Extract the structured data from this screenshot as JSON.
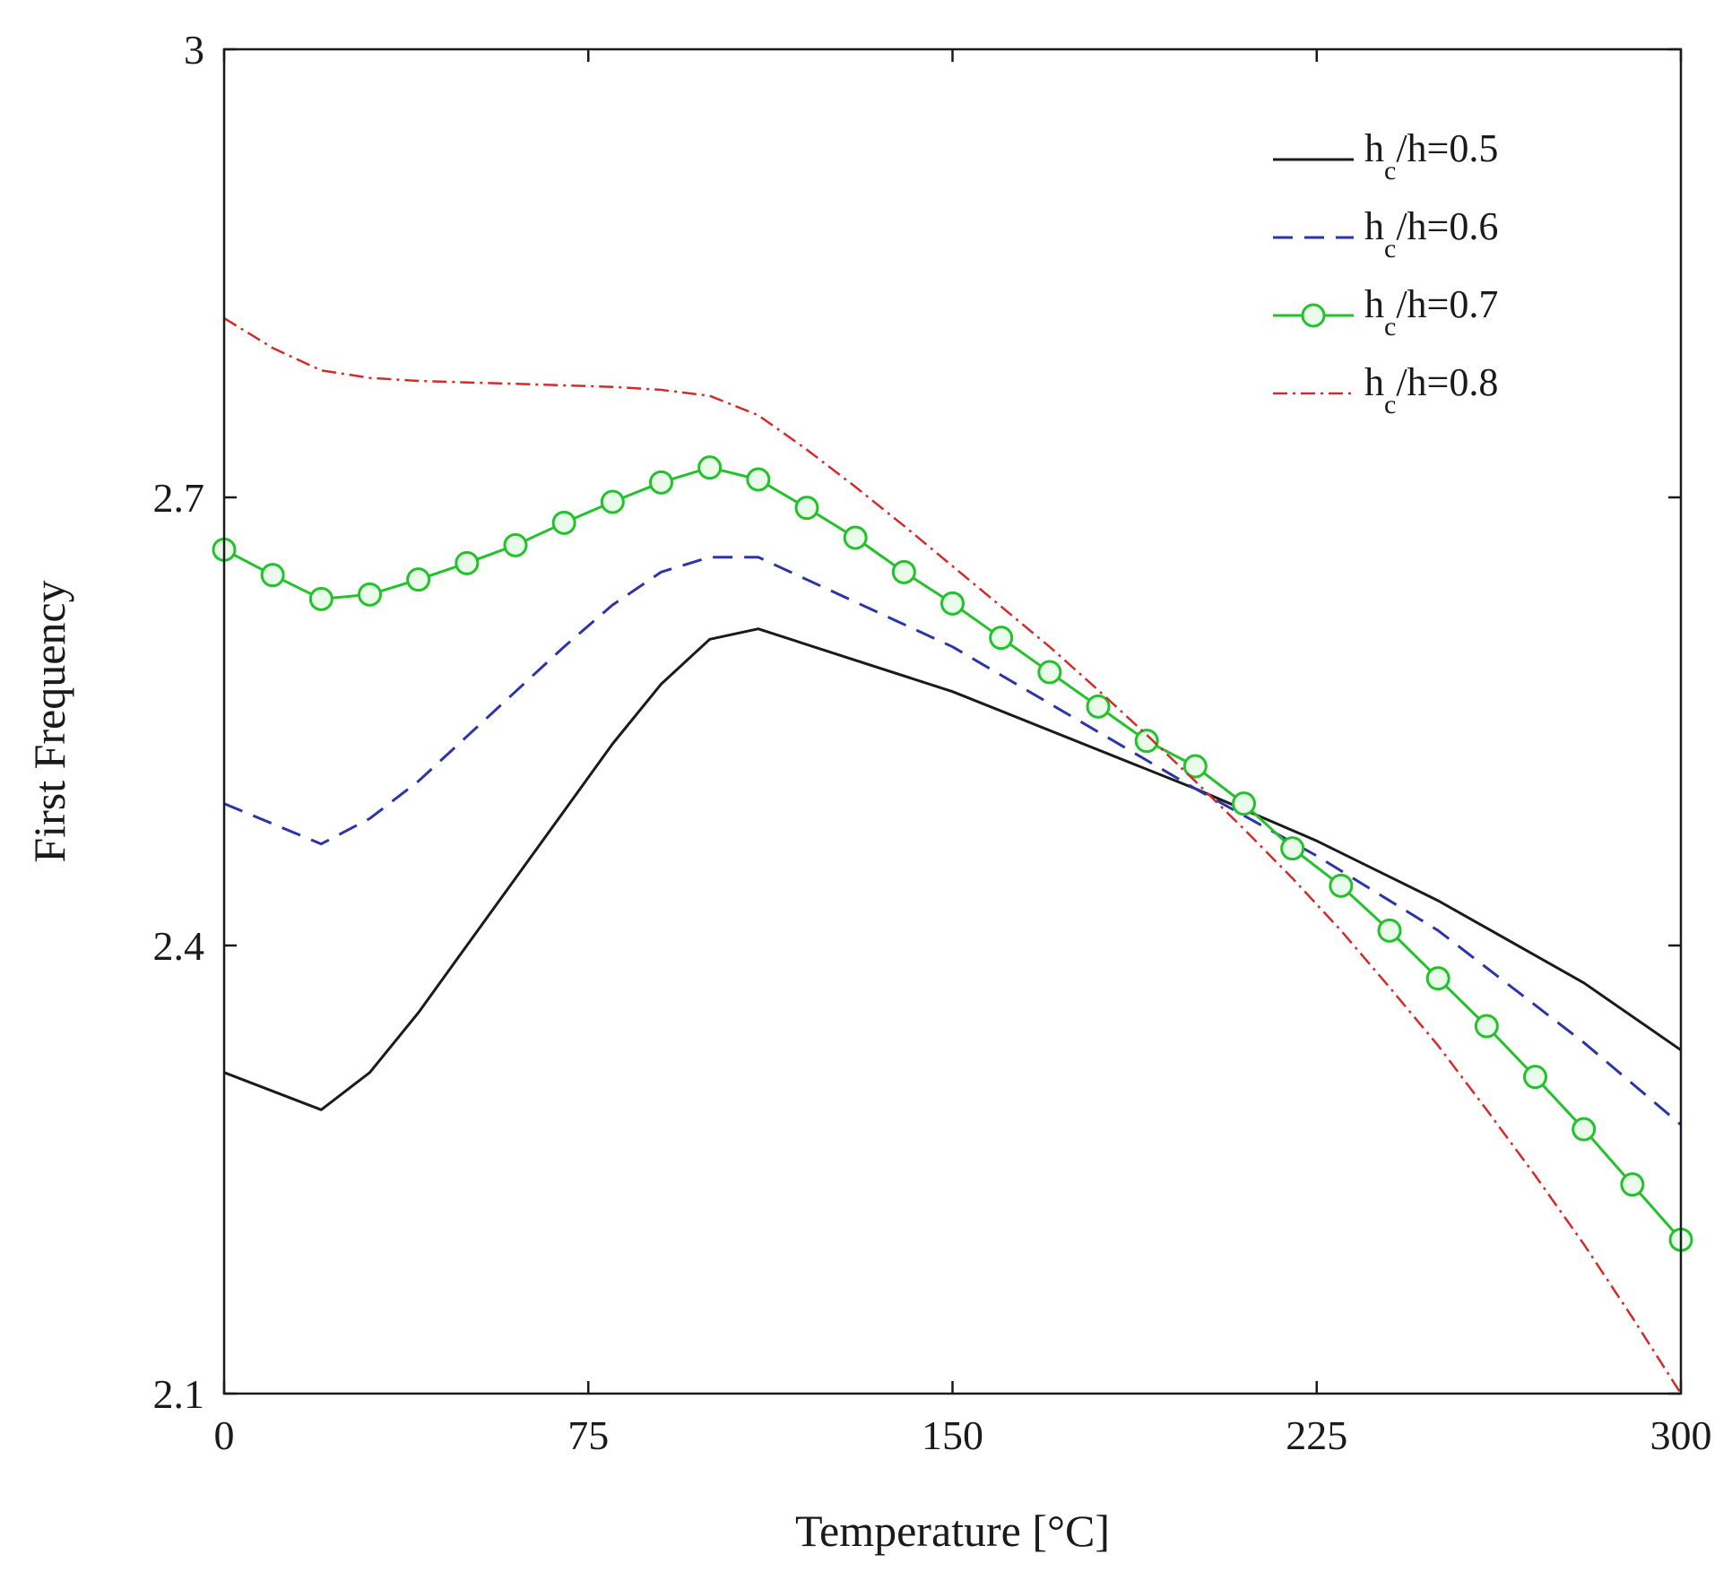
{
  "chart_data": {
    "type": "line",
    "title": "",
    "xlabel": "Temperature [°C]",
    "ylabel": "First Frequency",
    "xlim": [
      0,
      300
    ],
    "ylim": [
      2.1,
      3.0
    ],
    "xticks": [
      0,
      75,
      150,
      225,
      300
    ],
    "xtick_labels": [
      "0",
      "75",
      "150",
      "225",
      "300"
    ],
    "yticks": [
      2.1,
      2.4,
      2.7,
      3.0
    ],
    "ytick_labels": [
      "2.1",
      "2.4",
      "2.7",
      "3"
    ],
    "grid": false,
    "legend_position": "top-right",
    "series": [
      {
        "name": "hc/h=0.5",
        "label_main": "h",
        "label_sub": "c",
        "label_rest": "/h=0.5",
        "color": "#1a1a1a",
        "dash": "solid",
        "marker": "none",
        "x": [
          0,
          20,
          30,
          40,
          50,
          60,
          70,
          80,
          90,
          100,
          110,
          150,
          200,
          225,
          250,
          280,
          300
        ],
        "y": [
          2.315,
          2.29,
          2.315,
          2.355,
          2.4,
          2.445,
          2.49,
          2.535,
          2.575,
          2.605,
          2.612,
          2.57,
          2.505,
          2.47,
          2.43,
          2.375,
          2.33
        ]
      },
      {
        "name": "hc/h=0.6",
        "label_main": "h",
        "label_sub": "c",
        "label_rest": "/h=0.6",
        "color": "#2b35a8",
        "dash": "dashed",
        "marker": "none",
        "x": [
          0,
          20,
          30,
          40,
          50,
          60,
          70,
          80,
          90,
          100,
          110,
          150,
          200,
          225,
          250,
          280,
          300
        ],
        "y": [
          2.495,
          2.468,
          2.485,
          2.51,
          2.54,
          2.57,
          2.6,
          2.628,
          2.65,
          2.66,
          2.66,
          2.6,
          2.505,
          2.46,
          2.41,
          2.335,
          2.28
        ]
      },
      {
        "name": "hc/h=0.7",
        "label_main": "h",
        "label_sub": "c",
        "label_rest": "/h=0.7",
        "color": "#22c22b",
        "dash": "solid",
        "marker": "circle",
        "x": [
          0,
          10,
          20,
          30,
          40,
          50,
          60,
          70,
          80,
          90,
          100,
          110,
          120,
          130,
          140,
          150,
          160,
          170,
          180,
          190,
          200,
          210,
          220,
          230,
          240,
          250,
          260,
          270,
          280,
          290,
          300
        ],
        "y": [
          2.665,
          2.648,
          2.632,
          2.635,
          2.645,
          2.656,
          2.668,
          2.683,
          2.697,
          2.71,
          2.72,
          2.712,
          2.693,
          2.673,
          2.65,
          2.629,
          2.606,
          2.583,
          2.56,
          2.537,
          2.52,
          2.495,
          2.465,
          2.44,
          2.41,
          2.378,
          2.346,
          2.312,
          2.277,
          2.24,
          2.203
        ]
      },
      {
        "name": "hc/h=0.8",
        "label_main": "h",
        "label_sub": "c",
        "label_rest": "/h=0.8",
        "color": "#d42a2a",
        "dash": "dashdot",
        "marker": "none",
        "x": [
          0,
          10,
          20,
          30,
          40,
          50,
          60,
          70,
          80,
          90,
          100,
          110,
          120,
          130,
          140,
          150,
          160,
          170,
          180,
          190,
          200,
          210,
          220,
          230,
          240,
          250,
          260,
          270,
          280,
          290,
          300
        ],
        "y": [
          2.82,
          2.8,
          2.785,
          2.78,
          2.778,
          2.777,
          2.776,
          2.775,
          2.774,
          2.772,
          2.768,
          2.755,
          2.732,
          2.707,
          2.681,
          2.654,
          2.627,
          2.6,
          2.571,
          2.541,
          2.51,
          2.478,
          2.445,
          2.41,
          2.372,
          2.333,
          2.29,
          2.246,
          2.2,
          2.151,
          2.1
        ]
      }
    ]
  }
}
